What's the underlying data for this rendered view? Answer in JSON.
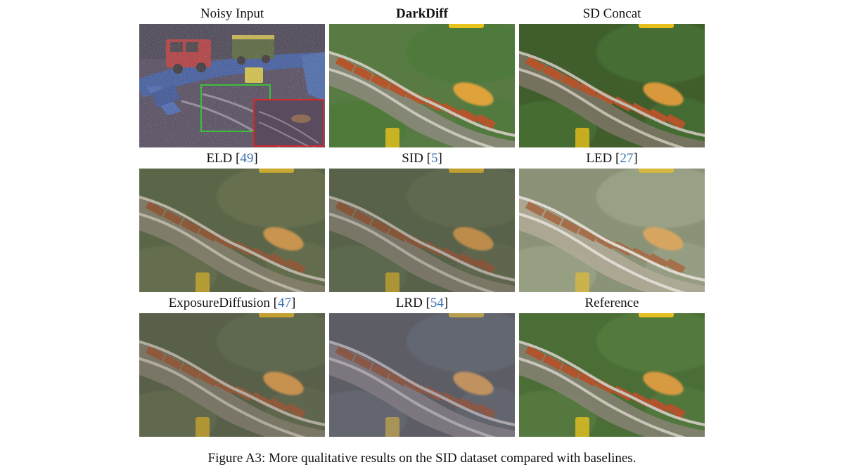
{
  "panels": [
    {
      "label": "Noisy Input",
      "ref": "",
      "bold": false,
      "variant": "noisy"
    },
    {
      "label": "DarkDiff",
      "ref": "",
      "bold": true,
      "variant": "darkdiff"
    },
    {
      "label": "SD Concat",
      "ref": "",
      "bold": false,
      "variant": "sdconcat"
    },
    {
      "label": "ELD [",
      "ref": "49",
      "suffix": "]",
      "bold": false,
      "variant": "eld"
    },
    {
      "label": "SID [",
      "ref": "5",
      "suffix": "]",
      "bold": false,
      "variant": "sid"
    },
    {
      "label": "LED [",
      "ref": "27",
      "suffix": "]",
      "bold": false,
      "variant": "led"
    },
    {
      "label": "ExposureDiffusion [",
      "ref": "47",
      "suffix": "]",
      "bold": false,
      "variant": "exposure"
    },
    {
      "label": "LRD [",
      "ref": "54",
      "suffix": "]",
      "bold": false,
      "variant": "lrd"
    },
    {
      "label": "Reference",
      "ref": "",
      "bold": false,
      "variant": "reference"
    }
  ],
  "caption": "Figure A3: More qualitative results on the SID dataset compared with baselines.",
  "colors": {
    "ref_link": "#3a6fb0",
    "zoom_box_green": "#3bbf3b",
    "zoom_box_red": "#d42a2a"
  }
}
